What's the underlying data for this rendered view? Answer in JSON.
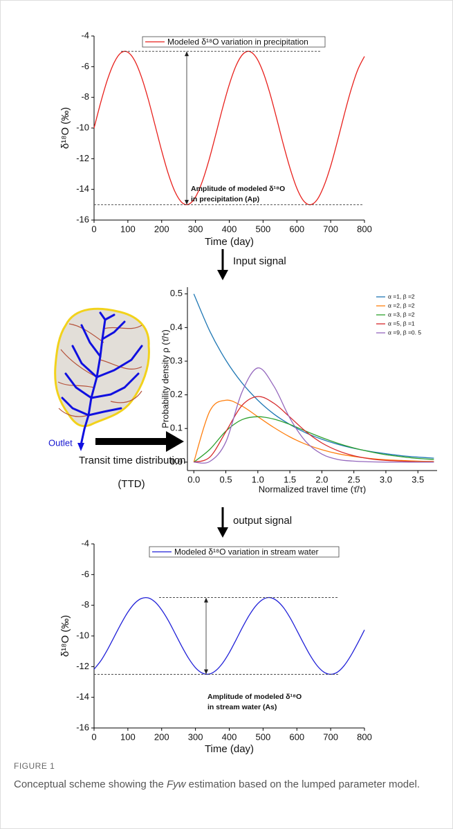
{
  "chart_data": [
    {
      "type": "line",
      "ylabel": "δ¹⁸O (‰)",
      "xlabel": "Time (day)",
      "x": [
        0,
        20,
        40,
        60,
        80,
        100,
        120,
        140,
        160,
        180,
        200,
        220,
        240,
        260,
        280,
        300,
        320,
        340,
        360,
        380,
        400,
        420,
        440,
        460,
        480,
        500,
        520,
        540,
        560,
        580,
        600,
        620,
        640,
        660,
        680,
        700,
        720,
        740,
        760,
        780,
        800
      ],
      "series": [
        {
          "name": "Modeled δ¹⁸O variation in precipitation",
          "color": "#e8201c",
          "values": [
            -10,
            -8.31,
            -6.82,
            -5.71,
            -5.09,
            -5.06,
            -5.6,
            -6.66,
            -8.1,
            -9.78,
            -11.48,
            -13.01,
            -14.18,
            -14.86,
            -14.97,
            -14.5,
            -13.5,
            -12.09,
            -10.43,
            -8.72,
            -7.17,
            -5.94,
            -5.19,
            -5.01,
            -5.41,
            -6.35,
            -7.72,
            -9.36,
            -11.07,
            -12.64,
            -13.93,
            -14.75,
            -15,
            -14.67,
            -13.78,
            -12.48,
            -10.86,
            -9.14,
            -7.53,
            -6.21,
            -5.33
          ]
        }
      ],
      "xlim": [
        0,
        800
      ],
      "xticks": [
        0,
        100,
        200,
        300,
        400,
        500,
        600,
        700,
        800
      ],
      "ylim": [
        -16,
        -4
      ],
      "yticks": [
        -16,
        -14,
        -12,
        -10,
        -8,
        -6,
        -4
      ],
      "legend": "top",
      "ref_lines": [
        -5,
        -15
      ],
      "annotation": [
        "Amplitude of modeled δ¹⁸O",
        "in precipitation (Ap)"
      ]
    },
    {
      "type": "line",
      "ylabel": "Probability density ρ (τ̄/τ)",
      "xlabel": "Normalized travel time (τ̄/τ)",
      "x": [
        0,
        0.25,
        0.5,
        0.75,
        1,
        1.25,
        1.5,
        1.75,
        2,
        2.25,
        2.5,
        2.75,
        3,
        3.25,
        3.5,
        3.75
      ],
      "series": [
        {
          "name": "α =1,  β =2",
          "color": "#1f77b4",
          "values": [
            0.5,
            0.389,
            0.303,
            0.236,
            0.184,
            0.143,
            0.112,
            0.087,
            0.068,
            0.053,
            0.041,
            0.032,
            0.025,
            0.019,
            0.015,
            0.012
          ]
        },
        {
          "name": "α =2,  β =2",
          "color": "#ff7f0e",
          "values": [
            0,
            0.152,
            0.184,
            0.167,
            0.135,
            0.103,
            0.075,
            0.053,
            0.037,
            0.025,
            0.017,
            0.011,
            0.007,
            0.005,
            0.003,
            0.002
          ]
        },
        {
          "name": "α =3,  β =2",
          "color": "#2ca02c",
          "values": [
            0,
            0.038,
            0.092,
            0.126,
            0.135,
            0.128,
            0.112,
            0.092,
            0.073,
            0.056,
            0.042,
            0.031,
            0.022,
            0.016,
            0.011,
            0.008
          ]
        },
        {
          "name": "α =5,  β =1",
          "color": "#d62728",
          "values": [
            0,
            0.015,
            0.09,
            0.168,
            0.195,
            0.175,
            0.134,
            0.091,
            0.057,
            0.034,
            0.019,
            0.01,
            0.005,
            0.003,
            0.001,
            0.001
          ]
        },
        {
          "name": "α =9,  β =0. 5",
          "color": "#9467bd",
          "values": [
            0,
            0.002,
            0.06,
            0.207,
            0.28,
            0.226,
            0.131,
            0.061,
            0.024,
            0.008,
            0.003,
            0.001,
            0,
            0,
            0,
            0
          ]
        }
      ],
      "xlim": [
        -0.1,
        3.8
      ],
      "xticks": [
        {
          "value": 0,
          "label": "0.0"
        },
        0.5,
        {
          "value": 1,
          "label": "1.0"
        },
        1.5,
        {
          "value": 2,
          "label": "2.0"
        },
        2.5,
        {
          "value": 3,
          "label": "3.0"
        },
        3.5
      ],
      "ylim": [
        -0.025,
        0.52
      ],
      "yticks": [
        {
          "value": 0,
          "label": "0.0"
        },
        0.1,
        0.2,
        0.3,
        0.4,
        0.5
      ],
      "legend": "upper right"
    },
    {
      "type": "line",
      "ylabel": "δ¹⁸O (‰)",
      "xlabel": "Time (day)",
      "x": [
        0,
        20,
        40,
        60,
        80,
        100,
        120,
        140,
        160,
        180,
        200,
        220,
        240,
        260,
        280,
        300,
        320,
        340,
        360,
        380,
        400,
        420,
        440,
        460,
        480,
        500,
        520,
        540,
        560,
        580,
        600,
        620,
        640,
        660,
        680,
        700,
        720,
        740,
        760,
        780,
        800
      ],
      "series": [
        {
          "name": "Modeled δ¹⁸O variation in stream water",
          "color": "#2020d8",
          "values": [
            -12.17,
            -11.62,
            -10.88,
            -10.04,
            -9.2,
            -8.45,
            -7.88,
            -7.56,
            -7.52,
            -7.78,
            -8.3,
            -9.01,
            -9.85,
            -10.7,
            -11.47,
            -12.07,
            -12.42,
            -12.49,
            -12.26,
            -11.78,
            -11.09,
            -10.26,
            -9.4,
            -8.62,
            -8,
            -7.61,
            -7.5,
            -7.69,
            -8.14,
            -8.82,
            -9.64,
            -10.49,
            -11.29,
            -11.94,
            -12.36,
            -12.5,
            -12.36,
            -11.93,
            -11.27,
            -10.47,
            -9.61
          ]
        }
      ],
      "xlim": [
        0,
        800
      ],
      "xticks": [
        0,
        100,
        200,
        300,
        400,
        500,
        600,
        700,
        800
      ],
      "ylim": [
        -16,
        -4
      ],
      "yticks": [
        -16,
        -14,
        -12,
        -10,
        -8,
        -6,
        -4
      ],
      "legend": "top",
      "ref_lines": [
        -7.5,
        -12.5
      ],
      "annotation": [
        "Amplitude of modeled δ¹⁸O",
        "in stream water (As)"
      ]
    }
  ],
  "diagram": {
    "outlet": "Outlet",
    "ttd_line1": "Transit time distribution",
    "ttd_line2": "(TTD)",
    "input": "Input signal",
    "output": "output signal"
  },
  "caption": {
    "label": "FIGURE 1",
    "pre": "Conceptual scheme showing the ",
    "italic": "Fyw",
    "post": " estimation based on the lumped parameter model."
  }
}
